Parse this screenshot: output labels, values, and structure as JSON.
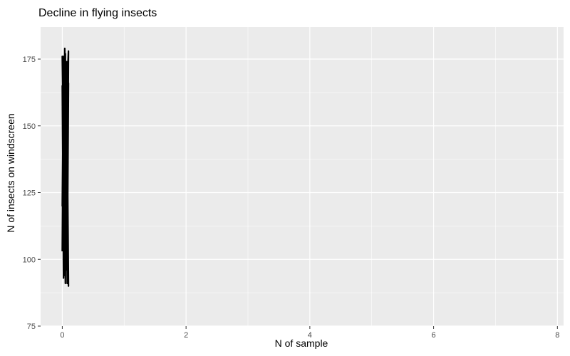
{
  "chart_data": {
    "type": "line",
    "title": "Decline in flying insects",
    "xlabel": "N of sample",
    "ylabel": "N of insects on windscreen",
    "xlim": [
      -0.35,
      8.1
    ],
    "ylim": [
      75,
      187
    ],
    "x_ticks": [
      0,
      2,
      4,
      6,
      8
    ],
    "y_ticks": [
      75,
      100,
      125,
      150,
      175
    ],
    "grid": true,
    "legend": "none",
    "series": [
      {
        "color": "#000000",
        "x": [
          0.0,
          0.02,
          0.04,
          0.06,
          0.08,
          0.1,
          0.01,
          0.03,
          0.05,
          0.07,
          0.09,
          0.0,
          0.02,
          0.04,
          0.06,
          0.08,
          0.1,
          0.01,
          0.03,
          0.05,
          0.07,
          0.09,
          0.0,
          0.02,
          0.04,
          0.06,
          0.08,
          0.1,
          0.01,
          0.03,
          0.05,
          0.07,
          0.09,
          0.0,
          0.02,
          0.04,
          0.06,
          0.08,
          0.1,
          0.01
        ],
        "y": [
          103,
          176,
          95,
          170,
          92,
          178,
          110,
          162,
          91,
          174,
          98,
          165,
          93,
          179,
          105,
          150,
          90,
          172,
          100,
          177,
          96,
          158,
          120,
          175,
          94,
          168,
          91,
          178,
          130,
          171,
          97,
          155,
          92,
          176,
          140,
          99,
          173,
          91,
          166,
          104
        ]
      }
    ]
  },
  "colors": {
    "panel_background": "#ebebeb",
    "grid_major": "#ffffff",
    "tick_label": "#4d4d4d",
    "line": "#000000"
  }
}
